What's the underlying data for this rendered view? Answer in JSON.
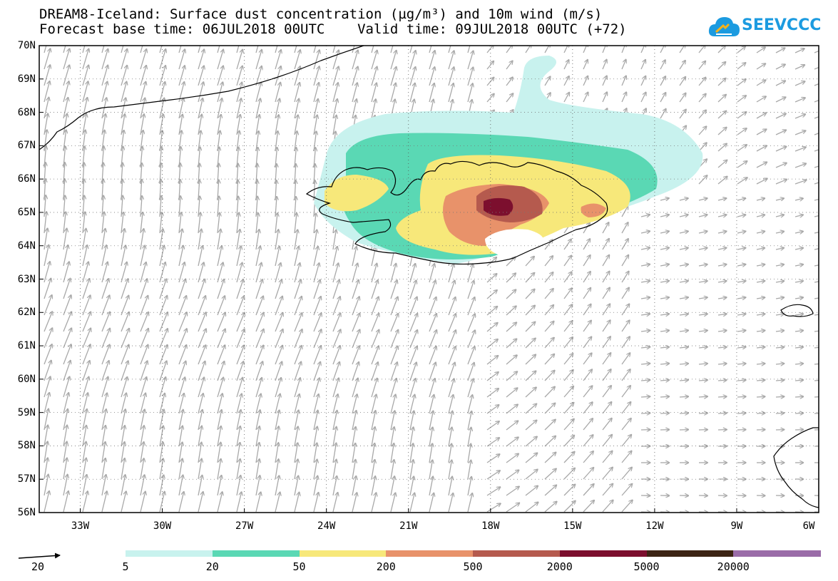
{
  "header": {
    "title_line1": "DREAM8-Iceland: Surface dust concentration (µg/m³) and 10m wind (m/s)",
    "title_line2": "Forecast base time: 06JUL2018 00UTC    Valid time: 09JUL2018 00UTC (+72)"
  },
  "logo": {
    "text": "SEEVCCC",
    "icon": "cloud-icon",
    "color": "#1c9be0"
  },
  "map": {
    "lat_labels": [
      "70N",
      "69N",
      "68N",
      "67N",
      "66N",
      "65N",
      "64N",
      "63N",
      "62N",
      "61N",
      "60N",
      "59N",
      "58N",
      "57N",
      "56N"
    ],
    "lon_labels": [
      "33W",
      "30W",
      "27W",
      "24W",
      "21W",
      "18W",
      "15W",
      "12W",
      "9W",
      "6W"
    ],
    "lat_range": [
      56,
      70
    ],
    "lon_range": [
      -34.5,
      -6
    ],
    "grid": true
  },
  "wind_legend": {
    "label": "20",
    "icon": "wind-arrow-icon"
  },
  "colorbar": {
    "labels": [
      "5",
      "20",
      "50",
      "200",
      "500",
      "2000",
      "5000",
      "20000"
    ],
    "colors": [
      "#c8f2ee",
      "#5ad8b4",
      "#f7e87a",
      "#e8926a",
      "#b55a4e",
      "#7c0f2e",
      "#3c2414",
      "#9a6ca8"
    ]
  }
}
